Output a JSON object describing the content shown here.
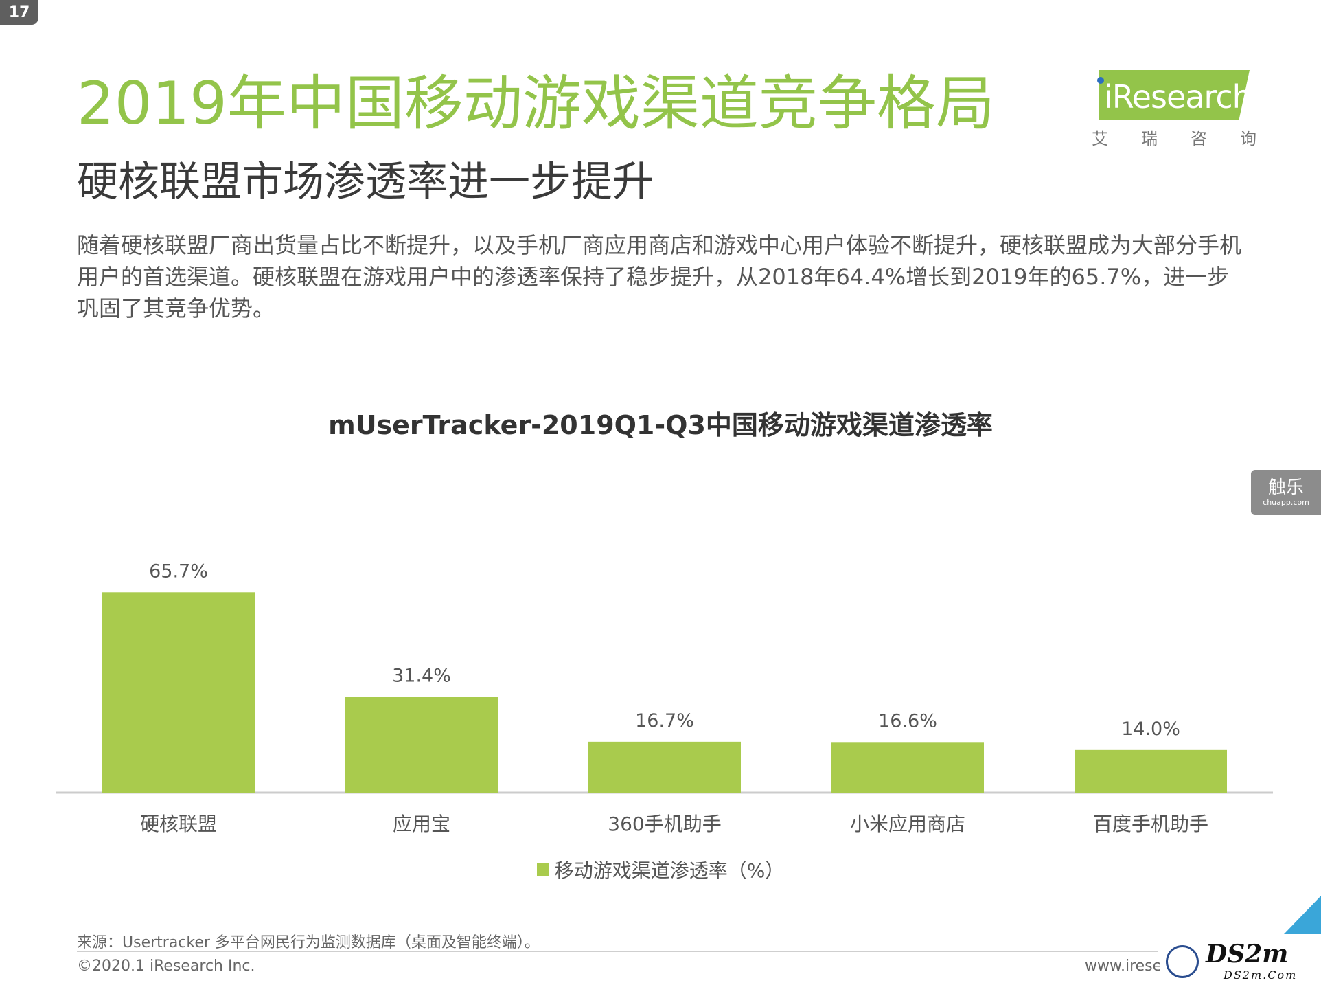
{
  "page": {
    "number": "17",
    "title": "2019年中国移动游戏渠道竞争格局",
    "subtitle": "硬核联盟市场渗透率进一步提升",
    "description": "随着硬核联盟厂商出货量占比不断提升，以及手机厂商应用商店和游戏中心用户体验不断提升，硬核联盟成为大部分手机用户的首选渠道。硬核联盟在游戏用户中的渗透率保持了稳步提升，从2018年64.4%增长到2019年的65.7%，进一步巩固了其竞争优势。"
  },
  "logo": {
    "text": "Research",
    "subtitle_chars": [
      "艾",
      "瑞",
      "咨",
      "询"
    ]
  },
  "side_badge": {
    "main": "触乐",
    "sub": "chuapp.com"
  },
  "footer": {
    "source": "来源：Usertracker 多平台网民行为监测数据库（桌面及智能终端）。",
    "copyright": "©2020.1 iResearch Inc.",
    "url": "www.irese"
  },
  "watermark": {
    "text": "DS2m",
    "sub": "DS2m.Com"
  },
  "colors": {
    "title_green": "#93c44a",
    "bar_green": "#a9cb4d",
    "axis": "#cccccc",
    "corner_blue": "#3aa6d9"
  },
  "chart_data": {
    "type": "bar",
    "title": "mUserTracker-2019Q1-Q3中国移动游戏渠道渗透率",
    "categories": [
      "硬核联盟",
      "应用宝",
      "360手机助手",
      "小米应用商店",
      "百度手机助手"
    ],
    "series": [
      {
        "name": "移动游戏渠道渗透率（%）",
        "values": [
          65.7,
          31.4,
          16.7,
          16.6,
          14.0
        ],
        "labels": [
          "65.7%",
          "31.4%",
          "16.7%",
          "16.6%",
          "14.0%"
        ]
      }
    ],
    "ylim": [
      0,
      70
    ],
    "grid": false,
    "legend_position": "bottom-center"
  }
}
